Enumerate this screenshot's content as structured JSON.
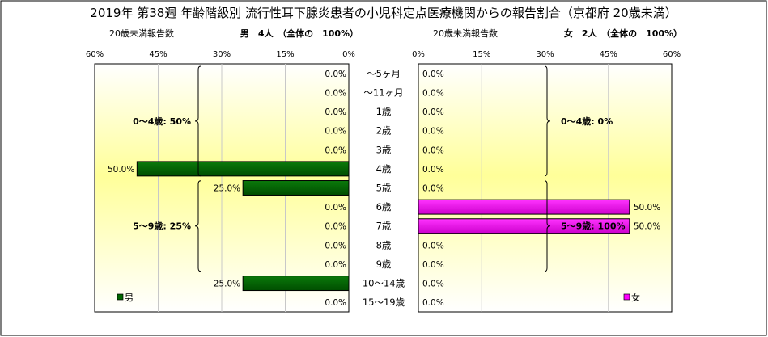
{
  "chart_data": {
    "type": "bar",
    "title": "2019年 第38週 年齢階級別 流行性耳下腺炎患者の小児科定点医療機関からの報告割合（京都府 20歳未満）",
    "categories": [
      "～5ヶ月",
      "～11ヶ月",
      "1歳",
      "2歳",
      "3歳",
      "4歳",
      "5歳",
      "6歳",
      "7歳",
      "8歳",
      "9歳",
      "10～14歳",
      "15～19歳"
    ],
    "xlim": [
      0,
      60
    ],
    "xticks": [
      "60%",
      "45%",
      "30%",
      "15%",
      "0%"
    ],
    "xticks_right": [
      "0%",
      "15%",
      "30%",
      "45%",
      "60%"
    ],
    "grid": true,
    "series": [
      {
        "name": "男",
        "color": "#006600",
        "header_label": "20歳未満報告数",
        "header_count": "男　4人　（全体の　100%）",
        "values": [
          0.0,
          0.0,
          0.0,
          0.0,
          0.0,
          50.0,
          25.0,
          0.0,
          0.0,
          0.0,
          0.0,
          25.0,
          0.0
        ],
        "labels": [
          "0.0%",
          "0.0%",
          "0.0%",
          "0.0%",
          "0.0%",
          "50.0%",
          "25.0%",
          "0.0%",
          "0.0%",
          "0.0%",
          "0.0%",
          "25.0%",
          "0.0%"
        ],
        "groups": [
          {
            "label": "0～4歳: 50%",
            "from": 0,
            "to": 5
          },
          {
            "label": "5～9歳: 25%",
            "from": 6,
            "to": 10
          }
        ]
      },
      {
        "name": "女",
        "color": "#ff00ff",
        "header_label": "20歳未満報告数",
        "header_count": "女　2人　（全体の　100%）",
        "values": [
          0.0,
          0.0,
          0.0,
          0.0,
          0.0,
          0.0,
          0.0,
          50.0,
          50.0,
          0.0,
          0.0,
          0.0,
          0.0
        ],
        "labels": [
          "0.0%",
          "0.0%",
          "0.0%",
          "0.0%",
          "0.0%",
          "0.0%",
          "0.0%",
          "50.0%",
          "50.0%",
          "0.0%",
          "0.0%",
          "0.0%",
          "0.0%"
        ],
        "groups": [
          {
            "label": "0～4歳: 0%",
            "from": 0,
            "to": 5
          },
          {
            "label": "5～9歳: 100%",
            "from": 6,
            "to": 10
          }
        ]
      }
    ]
  }
}
